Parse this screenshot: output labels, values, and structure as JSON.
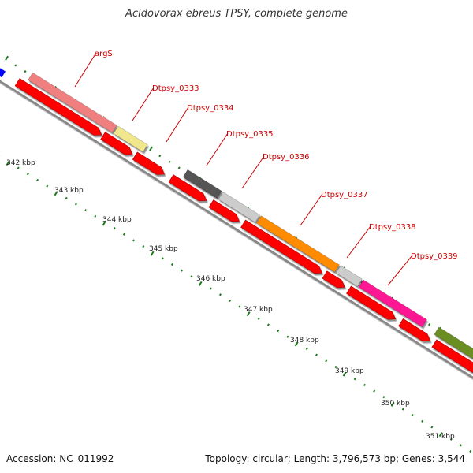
{
  "title": "Acidovorax ebreus TPSY, complete genome",
  "footer": {
    "accession": "Accession: NC_011992",
    "topology": "Topology: circular; Length: 3,796,573 bp; Genes: 3,544"
  },
  "colors": {
    "forward_cds": "#ff0000",
    "backbone": "#888888",
    "tick": "#1a7a1a",
    "label": "#cc0000",
    "edge_marker": "#0000ff"
  },
  "gene_labels": [
    {
      "name": "argS",
      "color": "#f08080"
    },
    {
      "name": "Dtpsy_0333",
      "color": "#f0e68c"
    },
    {
      "name": "Dtpsy_0334",
      "color": "#ff0000"
    },
    {
      "name": "Dtpsy_0335",
      "color": "#555555"
    },
    {
      "name": "Dtpsy_0336",
      "color": "#cccccc"
    },
    {
      "name": "Dtpsy_0337",
      "color": "#ff8c00"
    },
    {
      "name": "Dtpsy_0338",
      "color": "#cccccc"
    },
    {
      "name": "Dtpsy_0339",
      "color": "#ff1493"
    }
  ],
  "extra_feature_color": "#6b8e23",
  "ticks": [
    "342 kbp",
    "343 kbp",
    "344 kbp",
    "345 kbp",
    "346 kbp",
    "347 kbp",
    "348 kbp",
    "349 kbp",
    "350 kbp",
    "351 kbp"
  ]
}
